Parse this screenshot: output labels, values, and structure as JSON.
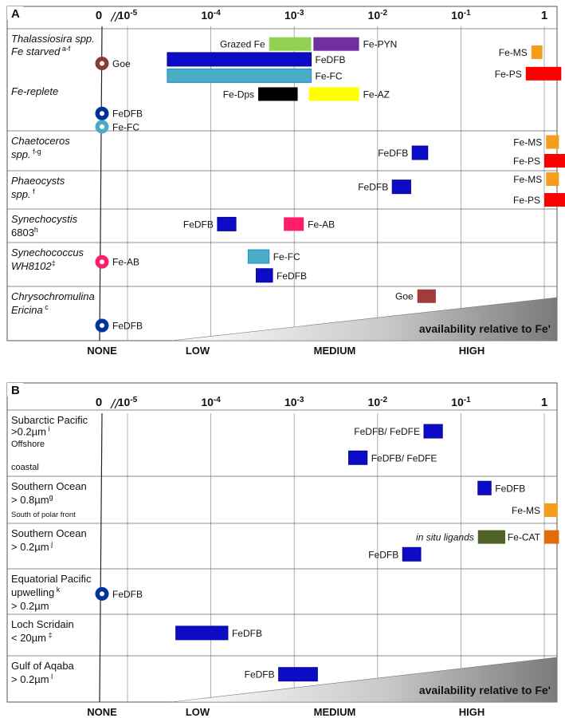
{
  "chart_data": [
    {
      "type": "range-bar",
      "panel_label": "A",
      "x_scale": "log",
      "x_ticks": [
        {
          "label": "0",
          "value": 0
        },
        {
          "label": "10",
          "exp": "-5",
          "value": 1e-05
        },
        {
          "label": "10",
          "exp": "-4",
          "value": 0.0001
        },
        {
          "label": "10",
          "exp": "-3",
          "value": 0.001
        },
        {
          "label": "10",
          "exp": "-2",
          "value": 0.01
        },
        {
          "label": "10",
          "exp": "-1",
          "value": 0.1
        },
        {
          "label": "1",
          "value": 1
        }
      ],
      "x_categories": [
        "NONE",
        "LOW",
        "MEDIUM",
        "HIGH"
      ],
      "triangle_label": "availability relative to Fe'",
      "rows": [
        {
          "lines": [
            {
              "parts": [
                {
                  "t": "Thalassiosira spp.",
                  "i": true
                }
              ]
            },
            {
              "parts": [
                {
                  "t": "Fe starved",
                  "i": true
                },
                {
                  "t": " a-f",
                  "sup": true
                }
              ]
            },
            {
              "parts": []
            },
            {
              "parts": []
            },
            {
              "parts": [
                {
                  "t": "Fe-replete",
                  "i": true
                }
              ]
            }
          ]
        },
        {
          "lines": [
            {
              "parts": [
                {
                  "t": "Chaetoceros",
                  "i": true
                }
              ]
            },
            {
              "parts": [
                {
                  "t": "spp.",
                  "i": true
                },
                {
                  "t": " f-g",
                  "sup": true
                }
              ]
            }
          ]
        },
        {
          "lines": [
            {
              "parts": [
                {
                  "t": "Phaeocysts",
                  "i": true
                }
              ]
            },
            {
              "parts": [
                {
                  "t": "spp.",
                  "i": true
                },
                {
                  "t": " f",
                  "sup": true
                }
              ]
            }
          ]
        },
        {
          "lines": [
            {
              "parts": [
                {
                  "t": "Synechocystis",
                  "i": true
                }
              ]
            },
            {
              "parts": [
                {
                  "t": "6803"
                },
                {
                  "t": "h",
                  "sup": true
                }
              ]
            }
          ]
        },
        {
          "lines": [
            {
              "parts": [
                {
                  "t": "Synechococcus",
                  "i": true
                }
              ]
            },
            {
              "parts": [
                {
                  "t": "WH8102",
                  "i": true
                },
                {
                  "t": "‡",
                  "sup": true
                }
              ]
            }
          ]
        },
        {
          "lines": [
            {
              "parts": [
                {
                  "t": "Chrysochromulina",
                  "i": true
                }
              ]
            },
            {
              "parts": [
                {
                  "t": "Ericina",
                  "i": true
                },
                {
                  "t": " c",
                  "sup": true
                }
              ]
            }
          ]
        }
      ],
      "series": [
        {
          "name": "Grazed Fe",
          "row": 0,
          "lo": 0.0005,
          "hi": 0.0016,
          "color": "#92d050",
          "label_side": "left",
          "sub": 0.15
        },
        {
          "name": "Fe-PYN",
          "row": 0,
          "lo": 0.0017,
          "hi": 0.006,
          "color": "#7030a0",
          "label_side": "right",
          "sub": 0.15
        },
        {
          "name": "FeDFB",
          "row": 0,
          "lo": 3e-05,
          "hi": 0.0016,
          "color": "#0c0cc8",
          "label_side": "right",
          "sub": 0.3
        },
        {
          "name": "Fe-FC",
          "row": 0,
          "lo": 3e-05,
          "hi": 0.0016,
          "color": "#4bacc6",
          "label_side": "right",
          "sub": 0.46
        },
        {
          "name": "Fe-Dps",
          "row": 0,
          "lo": 0.00037,
          "hi": 0.0011,
          "color": "#000000",
          "label_side": "left",
          "sub": 0.64
        },
        {
          "name": "Fe-AZ",
          "row": 0,
          "lo": 0.0015,
          "hi": 0.006,
          "color": "#ffff00",
          "label_side": "right",
          "sub": 0.64
        },
        {
          "name": "Fe-MS",
          "row": 0,
          "lo": 0.7,
          "hi": 0.95,
          "color": "#f59d1c",
          "label_side": "left",
          "sub": 0.23
        },
        {
          "name": "Fe-PS",
          "row": 0,
          "lo": 0.6,
          "hi": 1.6,
          "color": "#ff0000",
          "label_side": "left",
          "sub": 0.44
        },
        {
          "name": "Goe",
          "row": 0,
          "value": 0,
          "marker": "ring",
          "color": "#8b3a3a",
          "label_side": "right",
          "sub": 0.34
        },
        {
          "name": "FeDFB",
          "row": 0,
          "value": 0,
          "marker": "ring",
          "color": "#003399",
          "label_side": "right",
          "sub": 0.83
        },
        {
          "name": "Fe-FC",
          "row": 0,
          "value": 0,
          "marker": "ring",
          "color": "#4bacc6",
          "label_side": "right",
          "sub": 0.96
        },
        {
          "name": "FeDFB",
          "row": 1,
          "lo": 0.026,
          "hi": 0.04,
          "color": "#0c0cc8",
          "label_side": "left",
          "sub": 0.55
        },
        {
          "name": "Fe-MS",
          "row": 1,
          "lo": 1.05,
          "hi": 1.5,
          "color": "#f59d1c",
          "label_side": "left",
          "sub": 0.28
        },
        {
          "name": "Fe-PS",
          "row": 1,
          "lo": 1.0,
          "hi": 1.8,
          "color": "#ff0000",
          "label_side": "left",
          "sub": 0.75
        },
        {
          "name": "FeDFB",
          "row": 2,
          "lo": 0.015,
          "hi": 0.025,
          "color": "#0c0cc8",
          "label_side": "left",
          "sub": 0.42
        },
        {
          "name": "Fe-MS",
          "row": 2,
          "lo": 1.05,
          "hi": 1.5,
          "color": "#f59d1c",
          "label_side": "left",
          "sub": 0.22
        },
        {
          "name": "Fe-PS",
          "row": 2,
          "lo": 1.0,
          "hi": 1.8,
          "color": "#ff0000",
          "label_side": "left",
          "sub": 0.76
        },
        {
          "name": "FeDFB",
          "row": 3,
          "lo": 0.00012,
          "hi": 0.0002,
          "color": "#0c0cc8",
          "label_side": "left",
          "sub": 0.45
        },
        {
          "name": "Fe-AB",
          "row": 3,
          "lo": 0.00075,
          "hi": 0.0013,
          "color": "#ff1d6b",
          "label_side": "right",
          "sub": 0.45
        },
        {
          "name": "Fe-FC",
          "row": 4,
          "lo": 0.00028,
          "hi": 0.0005,
          "color": "#4bacc6",
          "label_side": "right",
          "sub": 0.32
        },
        {
          "name": "FeDFB",
          "row": 4,
          "lo": 0.00035,
          "hi": 0.00055,
          "color": "#0c0cc8",
          "label_side": "right",
          "sub": 0.75
        },
        {
          "name": "Fe-AB",
          "row": 4,
          "value": 0,
          "marker": "ring",
          "color": "#ff1d6b",
          "label_side": "right",
          "sub": 0.44
        },
        {
          "name": "Goe",
          "row": 5,
          "lo": 0.03,
          "hi": 0.05,
          "color": "#a23b3b",
          "label_side": "left",
          "sub": 0.18
        },
        {
          "name": "FeDFB",
          "row": 5,
          "value": 0,
          "marker": "ring",
          "color": "#003399",
          "label_side": "right",
          "sub": 0.72
        }
      ]
    },
    {
      "type": "range-bar",
      "panel_label": "B",
      "x_scale": "log",
      "x_ticks": [
        {
          "label": "0",
          "value": 0
        },
        {
          "label": "10",
          "exp": "-5",
          "value": 1e-05
        },
        {
          "label": "10",
          "exp": "-4",
          "value": 0.0001
        },
        {
          "label": "10",
          "exp": "-3",
          "value": 0.001
        },
        {
          "label": "10",
          "exp": "-2",
          "value": 0.01
        },
        {
          "label": "10",
          "exp": "-1",
          "value": 0.1
        },
        {
          "label": "1",
          "value": 1
        }
      ],
      "x_categories": [
        "NONE",
        "LOW",
        "MEDIUM",
        "HIGH"
      ],
      "triangle_label": "availability relative to Fe'",
      "rows": [
        {
          "lines": [
            {
              "parts": [
                {
                  "t": "Subarctic Pacific"
                }
              ]
            },
            {
              "parts": [
                {
                  "t": ">0.2µm"
                },
                {
                  "t": " i",
                  "sup": true
                }
              ]
            },
            {
              "parts": [
                {
                  "t": "Offshore",
                  "small": true
                }
              ]
            },
            {
              "parts": []
            },
            {
              "parts": [
                {
                  "t": "coastal",
                  "small": true
                }
              ]
            }
          ]
        },
        {
          "lines": [
            {
              "parts": [
                {
                  "t": "Southern Ocean"
                }
              ]
            },
            {
              "parts": [
                {
                  "t": "> 0.8µm"
                },
                {
                  "t": "g",
                  "sup": true
                }
              ]
            },
            {
              "parts": [
                {
                  "t": "South of polar front",
                  "tiny": true
                }
              ]
            }
          ]
        },
        {
          "lines": [
            {
              "parts": [
                {
                  "t": "Southern Ocean"
                }
              ]
            },
            {
              "parts": [
                {
                  "t": "> 0.2µm"
                },
                {
                  "t": " j",
                  "sup": true
                }
              ]
            }
          ]
        },
        {
          "lines": [
            {
              "parts": [
                {
                  "t": "Equatorial Pacific"
                }
              ]
            },
            {
              "parts": [
                {
                  "t": "upwelling"
                },
                {
                  "t": " k",
                  "sup": true
                }
              ]
            },
            {
              "parts": [
                {
                  "t": "> 0.2µm"
                }
              ]
            }
          ]
        },
        {
          "lines": [
            {
              "parts": [
                {
                  "t": "Loch Scridain"
                }
              ]
            },
            {
              "parts": [
                {
                  "t": "< 20µm"
                },
                {
                  "t": "  ‡",
                  "sup": true
                }
              ]
            }
          ]
        },
        {
          "lines": [
            {
              "parts": [
                {
                  "t": "Gulf of Aqaba"
                }
              ]
            },
            {
              "parts": [
                {
                  "t": "> 0.2µm"
                },
                {
                  "t": " l",
                  "sup": true
                }
              ]
            }
          ]
        }
      ],
      "series": [
        {
          "name": "FeDFB/ FeDFE",
          "row": 0,
          "lo": 0.036,
          "hi": 0.06,
          "color": "#0c0cc8",
          "label_side": "left",
          "sub": 0.32
        },
        {
          "name": "FeDFB/ FeDFE",
          "row": 0,
          "lo": 0.0045,
          "hi": 0.0075,
          "color": "#0c0cc8",
          "label_side": "right",
          "sub": 0.72
        },
        {
          "name": "FeDFB",
          "row": 1,
          "lo": 0.16,
          "hi": 0.23,
          "color": "#0c0cc8",
          "label_side": "right",
          "sub": 0.25
        },
        {
          "name": "Fe-MS",
          "row": 1,
          "lo": 1.0,
          "hi": 1.45,
          "color": "#f59d1c",
          "label_side": "left",
          "sub": 0.72
        },
        {
          "name": "in situ ligands",
          "italic": true,
          "row": 2,
          "lo": 0.16,
          "hi": 0.34,
          "color": "#4f6228",
          "label_side": "left",
          "sub": 0.3
        },
        {
          "name": "Fe-CAT",
          "row": 2,
          "lo": 1.0,
          "hi": 1.5,
          "color": "#e36c09",
          "label_side": "left",
          "sub": 0.3
        },
        {
          "name": "FeDFB",
          "row": 2,
          "lo": 0.02,
          "hi": 0.033,
          "color": "#0c0cc8",
          "label_side": "left",
          "sub": 0.68
        },
        {
          "name": "FeDFB",
          "row": 3,
          "value": 0,
          "marker": "ring",
          "color": "#003399",
          "label_side": "right",
          "sub": 0.55
        },
        {
          "name": "FeDFB",
          "row": 4,
          "lo": 3.8e-05,
          "hi": 0.00016,
          "color": "#0c0cc8",
          "label_side": "right",
          "sub": 0.45
        },
        {
          "name": "FeDFB",
          "row": 5,
          "lo": 0.00065,
          "hi": 0.0019,
          "color": "#0c0cc8",
          "label_side": "left",
          "sub": 0.4
        }
      ]
    }
  ]
}
